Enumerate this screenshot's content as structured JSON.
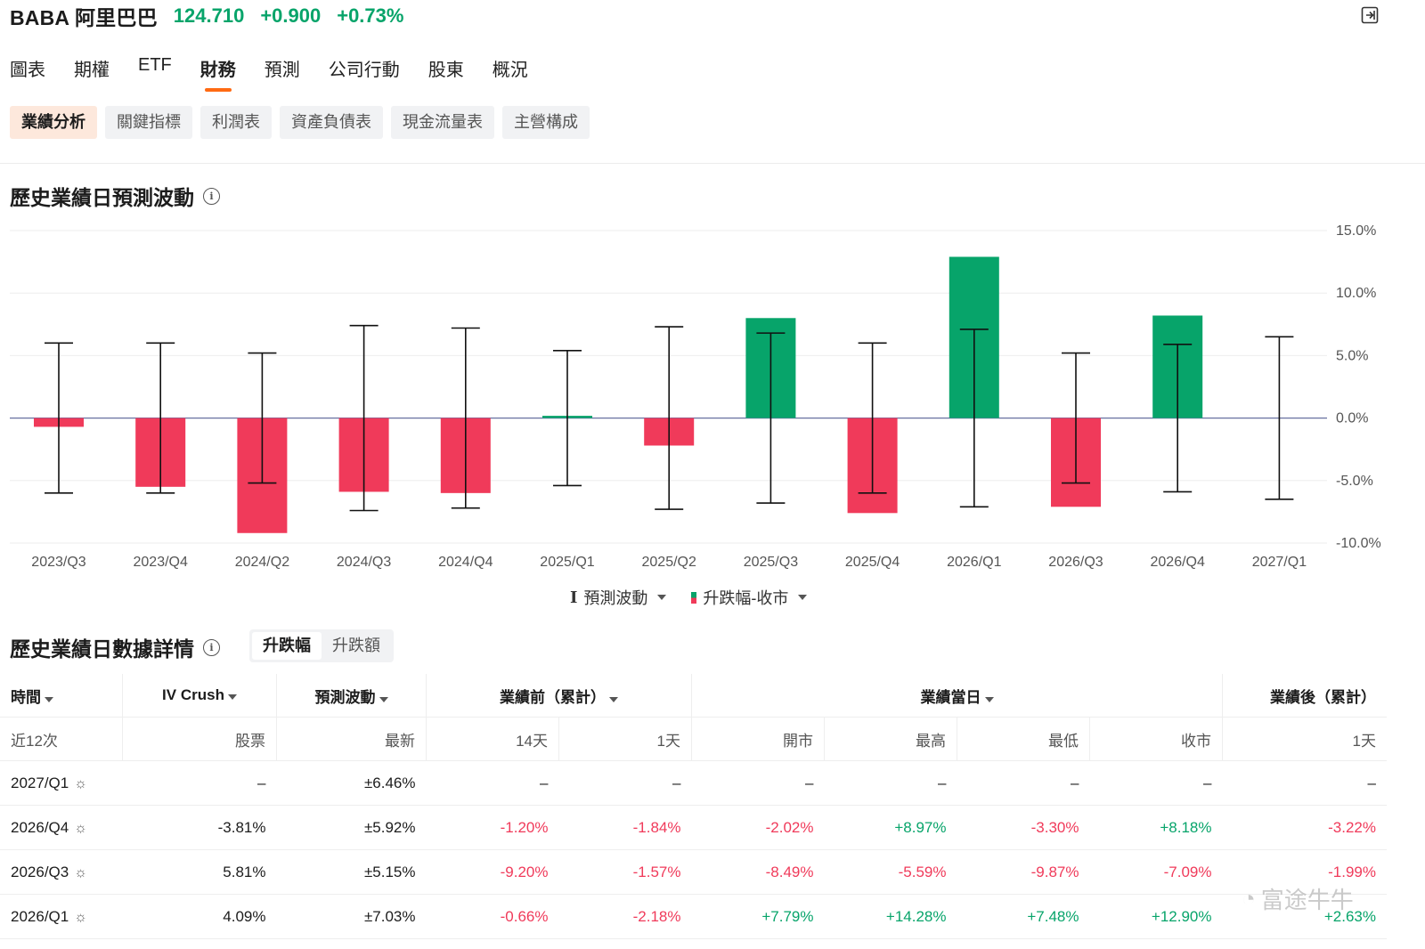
{
  "header": {
    "symbol": "BABA 阿里巴巴",
    "price": "124.710",
    "change": "+0.900",
    "change_pct": "+0.73%"
  },
  "tabs": [
    "圖表",
    "期權",
    "ETF",
    "財務",
    "預測",
    "公司行動",
    "股東",
    "概況"
  ],
  "active_tab": "財務",
  "subtabs": [
    "業績分析",
    "關鍵指標",
    "利潤表",
    "資產負債表",
    "現金流量表",
    "主營構成"
  ],
  "section1": {
    "title": "歷史業績日預測波動"
  },
  "chart_data": {
    "type": "bar",
    "categories": [
      "2023/Q3",
      "2023/Q4",
      "2024/Q2",
      "2024/Q3",
      "2024/Q4",
      "2025/Q1",
      "2025/Q2",
      "2025/Q3",
      "2025/Q4",
      "2026/Q1",
      "2026/Q3",
      "2026/Q4",
      "2027/Q1"
    ],
    "series": [
      {
        "name": "升跌幅-收市",
        "values": [
          -0.7,
          -5.5,
          -9.2,
          -5.9,
          -6.0,
          0.1,
          -2.2,
          8.0,
          -7.6,
          12.9,
          -7.1,
          8.2,
          null
        ]
      },
      {
        "name": "預測波動",
        "type": "errorbar",
        "values": [
          6.0,
          6.0,
          5.2,
          7.4,
          7.2,
          5.4,
          7.3,
          6.8,
          6.0,
          7.1,
          5.2,
          5.9,
          6.5
        ]
      }
    ],
    "yticks": [
      "15.0%",
      "10.0%",
      "5.0%",
      "0.0%",
      "-5.0%",
      "-10.0%"
    ],
    "ylim": [
      -10,
      15
    ],
    "colors": {
      "up": "#07a46a",
      "down": "#f03a5a"
    },
    "legend": [
      "預測波動",
      "升跌幅-收市"
    ]
  },
  "section2": {
    "title": "歷史業績日數據詳情",
    "seg": [
      "升跌幅",
      "升跌額"
    ]
  },
  "table": {
    "groups": [
      "時間",
      "IV Crush",
      "預測波動",
      "業績前（累計）",
      "業績當日",
      "業績後（累計）"
    ],
    "sub": [
      "近12次",
      "股票",
      "最新",
      "14天",
      "1天",
      "開市",
      "最高",
      "最低",
      "收市",
      "1天"
    ],
    "rows": [
      [
        "2027/Q1",
        "–",
        "±6.46%",
        "–",
        "–",
        "–",
        "–",
        "–",
        "–",
        "–"
      ],
      [
        "2026/Q4",
        "-3.81%",
        "±5.92%",
        "-1.20%",
        "-1.84%",
        "-2.02%",
        "+8.97%",
        "-3.30%",
        "+8.18%",
        "-3.22%"
      ],
      [
        "2026/Q3",
        "5.81%",
        "±5.15%",
        "-9.20%",
        "-1.57%",
        "-8.49%",
        "-5.59%",
        "-9.87%",
        "-7.09%",
        "-1.99%"
      ],
      [
        "2026/Q1",
        "4.09%",
        "±7.03%",
        "-0.66%",
        "-2.18%",
        "+7.79%",
        "+14.28%",
        "+7.48%",
        "+12.90%",
        "+2.63%"
      ]
    ]
  },
  "watermark": "富途牛牛"
}
